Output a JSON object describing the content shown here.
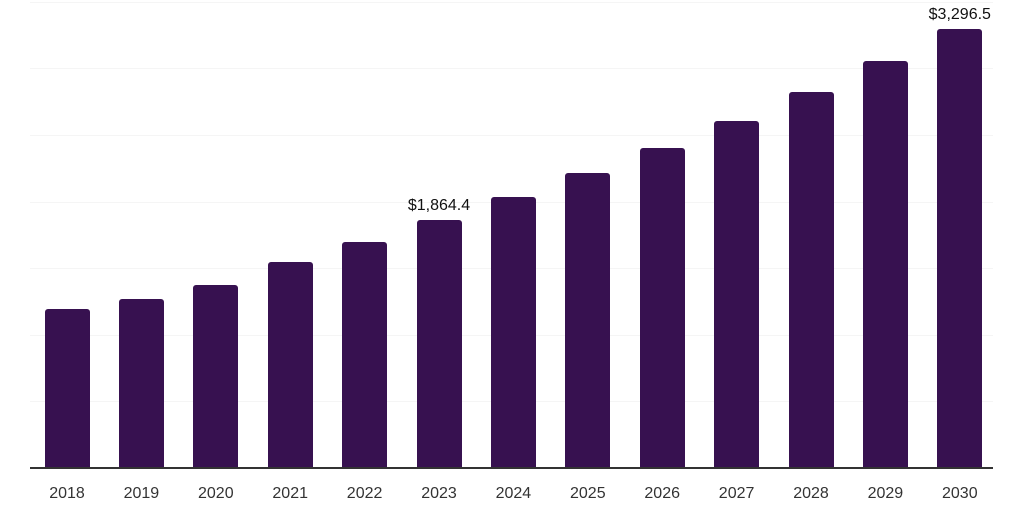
{
  "chart_data": {
    "type": "bar",
    "title": "",
    "xlabel": "",
    "ylabel": "",
    "categories": [
      "2018",
      "2019",
      "2020",
      "2021",
      "2022",
      "2023",
      "2024",
      "2025",
      "2026",
      "2027",
      "2028",
      "2029",
      "2030"
    ],
    "values": [
      1194,
      1267,
      1374,
      1545,
      1700,
      1864.4,
      2037,
      2213,
      2405,
      2608,
      2825,
      3058,
      3296.5
    ],
    "value_unit": "USD",
    "data_labels": [
      {
        "index": 5,
        "text": "$1,864.4"
      },
      {
        "index": 12,
        "text": "$3,296.5"
      }
    ],
    "ylim": [
      0,
      3500
    ],
    "gridline_step": 500,
    "grid": "horizontal-light",
    "legend": "none",
    "colors": {
      "bar": "#371150",
      "axis": "#333333",
      "gridline": "#f5f5f5",
      "tick_label": "#333333",
      "data_label": "#111111",
      "background": "#ffffff"
    }
  }
}
